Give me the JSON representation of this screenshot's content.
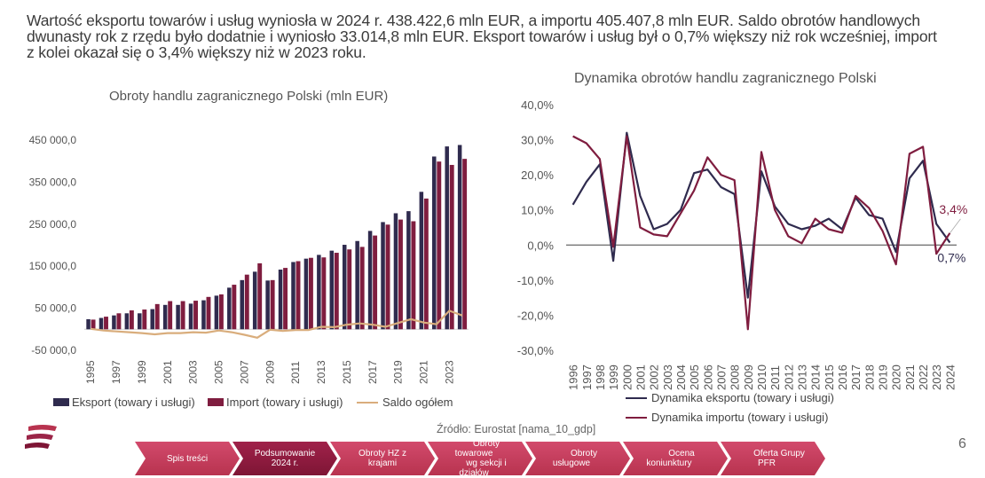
{
  "headline": {
    "line1": "Wartość eksportu towarów i usług wyniosła w 2024 r. 438.422,6 mln EUR, a importu 405.407,8 mln EUR. Saldo obrotów handlowych",
    "line2": "dwunasty rok z rzędu było dodatnie i wyniosło 33.014,8 mln EUR. Eksport towarów i usług był o 0,7% większy niż rok wcześniej, import",
    "line3": "z kolei okazał się o 3,4% większy niż w 2023 roku."
  },
  "colors": {
    "export": "#2f2b4e",
    "import": "#7f1d3f",
    "saldo": "#d9ad7c",
    "nav": "#c73d5e",
    "nav_active": "#8c1a3d"
  },
  "chart_data": [
    {
      "type": "bar",
      "title": "Obroty handlu zagranicznego Polski (mln EUR)",
      "ylim": [
        -50000,
        450000
      ],
      "y_ticks": [
        "450 000,0",
        "350 000,0",
        "250 000,0",
        "150 000,0",
        "50 000,0",
        "-50 000,0"
      ],
      "categories": [
        "1995",
        "1996",
        "1997",
        "1998",
        "1999",
        "2000",
        "2001",
        "2002",
        "2003",
        "2004",
        "2005",
        "2006",
        "2007",
        "2008",
        "2009",
        "2010",
        "2011",
        "2012",
        "2013",
        "2014",
        "2015",
        "2016",
        "2017",
        "2018",
        "2019",
        "2020",
        "2021",
        "2022",
        "2023",
        "2024"
      ],
      "x_tick_labels": [
        "1995",
        "1997",
        "1999",
        "2001",
        "2003",
        "2005",
        "2007",
        "2009",
        "2011",
        "2013",
        "2015",
        "2017",
        "2019",
        "2021",
        "2023"
      ],
      "series": [
        {
          "name": "Eksport (towary i usługi)",
          "type": "bar",
          "values": [
            24000,
            27000,
            33000,
            38000,
            38000,
            48000,
            58000,
            58000,
            61000,
            69000,
            80000,
            99000,
            117000,
            137000,
            116000,
            142000,
            160000,
            168000,
            177000,
            187000,
            201000,
            210000,
            234000,
            255000,
            276000,
            281000,
            327000,
            411000,
            435000,
            438423
          ]
        },
        {
          "name": "Import (towary i usługi)",
          "type": "bar",
          "values": [
            23000,
            30000,
            38000,
            45000,
            47000,
            60000,
            67000,
            67000,
            68000,
            77000,
            83000,
            106000,
            130000,
            157000,
            117000,
            146000,
            162000,
            170000,
            171000,
            182000,
            190000,
            196000,
            223000,
            249000,
            261000,
            257000,
            311000,
            399000,
            391000,
            405408
          ]
        },
        {
          "name": "Saldo ogółem",
          "type": "line",
          "values": [
            1000,
            -3000,
            -5000,
            -7000,
            -9000,
            -12000,
            -9000,
            -9000,
            -7000,
            -8000,
            -3000,
            -7000,
            -13000,
            -20000,
            -1000,
            -4000,
            -2000,
            -2000,
            6000,
            5000,
            11000,
            14000,
            11000,
            6000,
            15000,
            24000,
            16000,
            12000,
            44000,
            33015
          ]
        }
      ]
    },
    {
      "type": "line",
      "title": "Dynamika obrotów handlu zagranicznego Polski",
      "ylim": [
        -30,
        40
      ],
      "y_ticks": [
        "40,0%",
        "30,0%",
        "20,0%",
        "10,0%",
        "0,0%",
        "-10,0%",
        "-20,0%",
        "-30,0%"
      ],
      "categories": [
        "1996",
        "1997",
        "1998",
        "1999",
        "2000",
        "2001",
        "2002",
        "2003",
        "2004",
        "2005",
        "2006",
        "2007",
        "2008",
        "2009",
        "2010",
        "2011",
        "2012",
        "2013",
        "2014",
        "2015",
        "2016",
        "2017",
        "2018",
        "2019",
        "2020",
        "2021",
        "2022",
        "2023",
        "2024"
      ],
      "series": [
        {
          "name": "Dynamika eksportu (towary i usługi)",
          "values": [
            11.5,
            18,
            23,
            -4.5,
            32,
            14,
            4.5,
            6,
            10,
            20.5,
            21.5,
            16.5,
            14.5,
            -15,
            21,
            11,
            6,
            4.5,
            5.5,
            7.5,
            4.5,
            13.5,
            8.5,
            7.5,
            -2,
            19,
            24,
            6,
            0.7
          ]
        },
        {
          "name": "Dynamika importu (towary i usługi)",
          "values": [
            31,
            29,
            24.5,
            -0.5,
            31,
            5,
            3,
            2.5,
            9,
            15.5,
            25,
            20,
            18.5,
            -24,
            26.5,
            10,
            2.5,
            0.5,
            7.5,
            4.5,
            3.5,
            14,
            10.5,
            4,
            -5.5,
            26,
            28,
            -2.5,
            3.4
          ]
        }
      ],
      "end_labels": {
        "import": "3,4%",
        "export": "0,7%"
      }
    }
  ],
  "source": "Źródło: Eurostat [nama_10_gdp]",
  "page_number": "6",
  "nav": [
    {
      "line1": "Spis treści",
      "line2": ""
    },
    {
      "line1": "Podsumowanie",
      "line2": "2024 r."
    },
    {
      "line1": "Obroty HZ z",
      "line2": "krajami"
    },
    {
      "line1": "Obroty towarowe",
      "line2": "wg sekcji i działów"
    },
    {
      "line1": "Obroty usługowe",
      "line2": ""
    },
    {
      "line1": "Ocena koniunktury",
      "line2": ""
    },
    {
      "line1": "Oferta Grupy PFR",
      "line2": ""
    }
  ]
}
